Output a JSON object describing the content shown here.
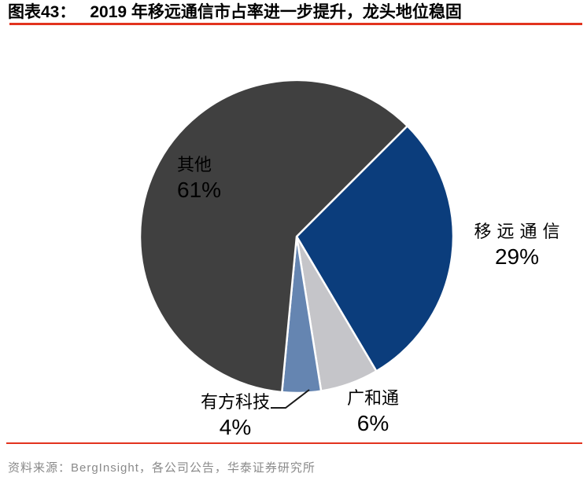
{
  "figure": {
    "label": "图表43：",
    "title": "2019 年移远通信市占率进一步提升，龙头地位稳固"
  },
  "chart_data": {
    "type": "pie",
    "title": "2019年移远通信市占率进一步提升，龙头地位稳固",
    "start_angle_deg": 45,
    "direction": "clockwise",
    "legend": "none",
    "data_labels": "category name + percent",
    "slices": [
      {
        "name": "移远通信",
        "value": 29,
        "pct": "29%",
        "color": "#0B3D7C",
        "label_position": "outside-right"
      },
      {
        "name": "广和通",
        "value": 6,
        "pct": "6%",
        "color": "#C5C5C9",
        "label_position": "outside-bottom"
      },
      {
        "name": "有方科技",
        "value": 4,
        "pct": "4%",
        "color": "#6585B1",
        "label_position": "outside-bottom-left",
        "leader_line": true
      },
      {
        "name": "其他",
        "value": 61,
        "pct": "61%",
        "color": "#404040",
        "label_position": "inside-left"
      }
    ]
  },
  "footer": {
    "source": "资料来源：BergInsight，各公司公告，华泰证券研究所"
  },
  "colors": {
    "accent_red": "#E2331E",
    "source_gray": "#8A8A8A",
    "label_text": "#000000",
    "slice_border": "#FFFFFF"
  }
}
